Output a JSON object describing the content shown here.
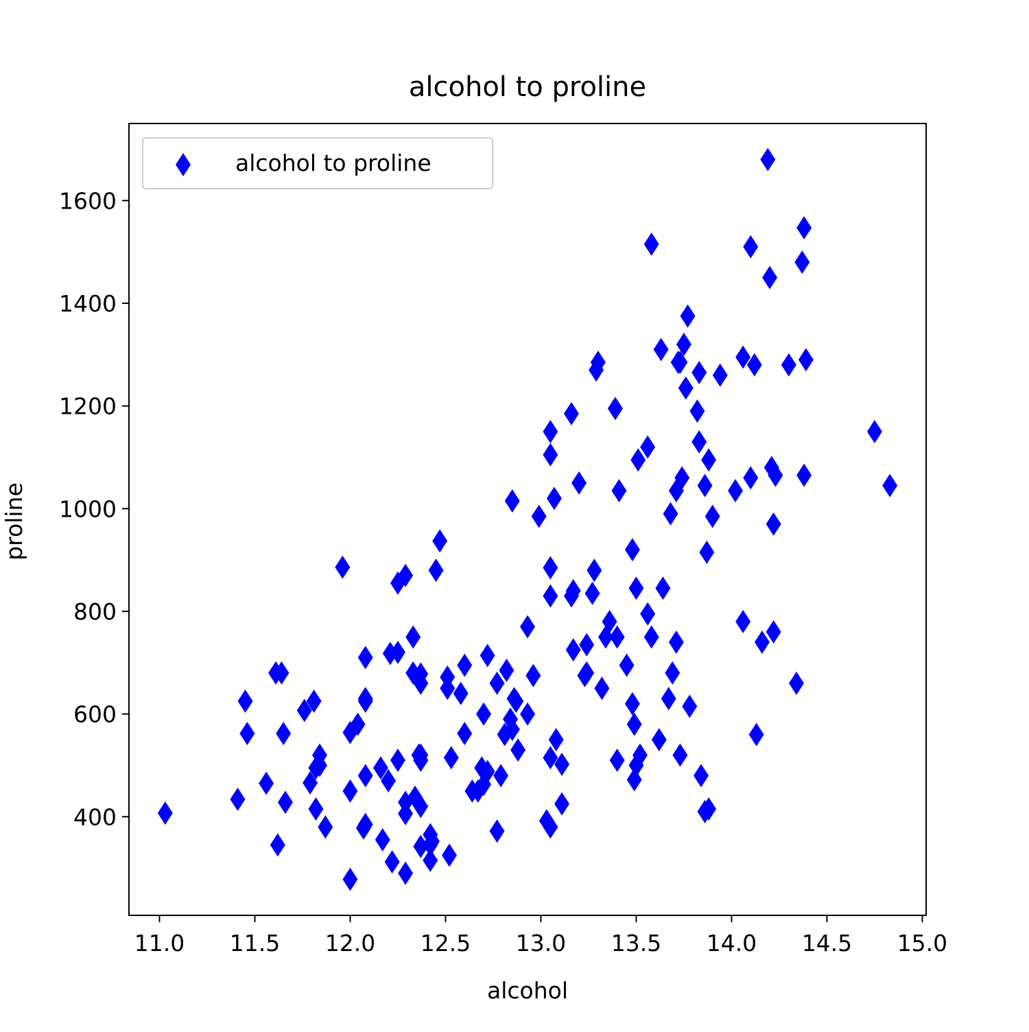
{
  "chart_data": {
    "type": "scatter",
    "title": "alcohol to proline",
    "x_label": "alcohol",
    "y_label": "proline",
    "xlim": [
      10.84,
      15.02
    ],
    "ylim": [
      207.9,
      1750.1
    ],
    "xticks": [
      {
        "value": 11,
        "label": "11.0"
      },
      {
        "value": 11.5,
        "label": "11.5"
      },
      {
        "value": 12,
        "label": "12.0"
      },
      {
        "value": 12.5,
        "label": "12.5"
      },
      {
        "value": 13,
        "label": "13.0"
      },
      {
        "value": 13.5,
        "label": "13.5"
      },
      {
        "value": 14,
        "label": "14.0"
      },
      {
        "value": 14.5,
        "label": "14.5"
      },
      {
        "value": 15,
        "label": "15.0"
      }
    ],
    "yticks": [
      400,
      600,
      800,
      1000,
      1200,
      1400,
      1600
    ],
    "legend": "upper left",
    "series": [
      {
        "name": "alcohol to proline",
        "color": "#0000ff",
        "x": [
          14.23,
          13.2,
          13.16,
          14.37,
          13.24,
          14.2,
          14.39,
          14.06,
          14.83,
          13.86,
          14.1,
          14.12,
          13.75,
          14.75,
          14.38,
          13.63,
          14.3,
          13.83,
          14.19,
          13.64,
          14.06,
          12.93,
          13.71,
          12.85,
          13.5,
          13.05,
          13.39,
          13.3,
          13.87,
          14.02,
          13.73,
          13.58,
          13.68,
          13.76,
          13.51,
          13.48,
          13.28,
          13.05,
          13.07,
          14.22,
          13.56,
          13.41,
          13.88,
          13.24,
          13.05,
          14.21,
          14.38,
          13.9,
          14.1,
          13.94,
          13.05,
          13.83,
          13.82,
          13.77,
          13.74,
          13.56,
          14.22,
          13.29,
          13.72,
          12.37,
          12.33,
          12.64,
          13.67,
          12.37,
          12.17,
          12.37,
          13.11,
          12.37,
          13.34,
          12.21,
          12.29,
          13.86,
          13.49,
          12.99,
          11.96,
          11.66,
          13.03,
          11.84,
          12.33,
          12.7,
          12.0,
          12.72,
          12.08,
          13.05,
          11.84,
          12.67,
          12.16,
          11.65,
          11.64,
          12.08,
          12.08,
          12.0,
          12.69,
          12.29,
          11.62,
          12.47,
          11.81,
          12.29,
          12.37,
          12.29,
          12.08,
          12.6,
          12.34,
          11.82,
          12.51,
          12.42,
          12.25,
          12.72,
          12.22,
          11.61,
          11.46,
          12.52,
          11.76,
          11.41,
          12.08,
          11.03,
          11.82,
          12.42,
          12.77,
          12.0,
          11.45,
          11.56,
          12.42,
          13.05,
          11.87,
          12.07,
          12.43,
          11.79,
          12.37,
          12.04,
          12.86,
          12.88,
          12.81,
          12.7,
          12.51,
          12.6,
          12.25,
          12.53,
          13.49,
          12.84,
          12.93,
          13.36,
          13.52,
          13.62,
          12.25,
          13.16,
          13.88,
          12.87,
          13.32,
          13.08,
          13.5,
          12.79,
          13.11,
          13.23,
          12.58,
          13.17,
          13.84,
          12.45,
          14.34,
          13.48,
          12.36,
          13.69,
          12.85,
          12.96,
          13.78,
          13.73,
          13.45,
          12.82,
          13.58,
          13.4,
          12.2,
          12.77,
          14.16,
          13.71,
          13.4,
          13.27,
          13.17,
          14.13
        ],
        "values": [
          1065,
          1050,
          1185,
          1480,
          735,
          1450,
          1290,
          1295,
          1045,
          1045,
          1510,
          1280,
          1320,
          1150,
          1547,
          1310,
          1280,
          1130,
          1680,
          845,
          780,
          770,
          1035,
          1015,
          845,
          830,
          1195,
          1285,
          915,
          1035,
          1285,
          1515,
          990,
          1235,
          1095,
          920,
          880,
          1105,
          1020,
          760,
          795,
          1035,
          1095,
          680,
          885,
          1080,
          1065,
          985,
          1060,
          1260,
          1150,
          1265,
          1190,
          1375,
          1060,
          1120,
          970,
          1270,
          1285,
          520,
          680,
          450,
          630,
          420,
          355,
          678,
          502,
          510,
          750,
          718,
          870,
          410,
          472,
          985,
          886,
          428,
          392,
          500,
          750,
          463,
          278,
          714,
          630,
          515,
          520,
          450,
          495,
          562,
          680,
          625,
          480,
          450,
          495,
          290,
          345,
          937,
          625,
          428,
          660,
          406,
          710,
          562,
          438,
          415,
          672,
          315,
          510,
          488,
          312,
          680,
          562,
          325,
          607,
          434,
          385,
          407,
          495,
          345,
          372,
          564,
          625,
          465,
          365,
          380,
          380,
          378,
          352,
          466,
          342,
          580,
          630,
          530,
          560,
          600,
          650,
          695,
          720,
          515,
          580,
          590,
          600,
          780,
          520,
          550,
          855,
          830,
          415,
          625,
          650,
          550,
          500,
          480,
          425,
          675,
          640,
          725,
          480,
          880,
          660,
          620,
          520,
          680,
          570,
          675,
          615,
          520,
          695,
          685,
          750,
          510,
          470,
          660,
          740,
          740,
          750,
          835,
          840,
          560
        ]
      }
    ]
  }
}
